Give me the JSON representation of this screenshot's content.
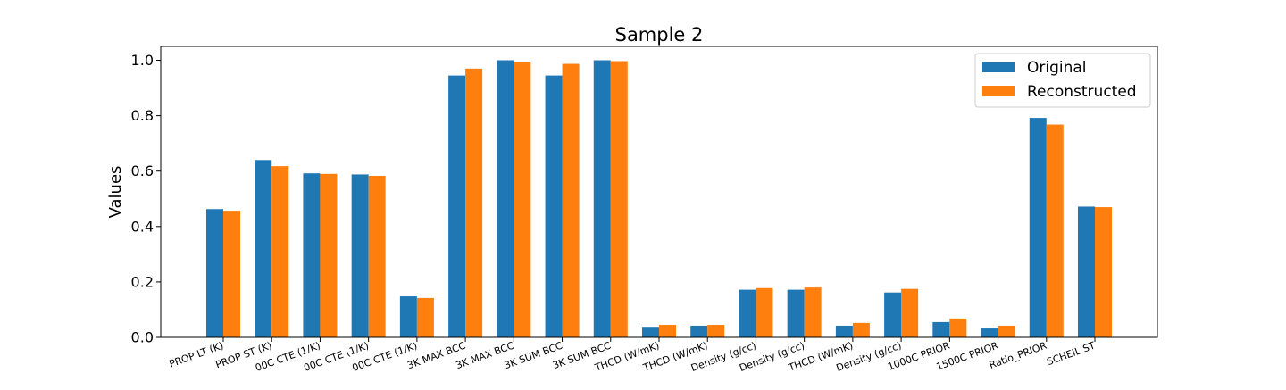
{
  "chart_data": {
    "type": "bar",
    "title": "Sample 2",
    "xlabel": "",
    "ylabel": "Values",
    "ylim": [
      0.0,
      1.05
    ],
    "yticks": [
      "0.0",
      "0.2",
      "0.4",
      "0.6",
      "0.8",
      "1.0"
    ],
    "grid": false,
    "legend_position": "top-right",
    "categories": [
      "PROP LT (K)",
      "PROP ST (K)",
      "00C CTE (1/K)",
      "00C CTE (1/K)",
      "00C CTE (1/K)",
      "3K MAX BCC",
      "3K MAX BCC",
      "3K SUM BCC",
      "3K SUM BCC",
      "THCD (W/mK)",
      "THCD (W/mK)",
      "Density (g/cc)",
      "Density (g/cc)",
      "THCD (W/mK)",
      "Density (g/cc)",
      "1000C PRIOR",
      "1500C PRIOR",
      "Ratio_PRIOR",
      "SCHEIL ST"
    ],
    "series": [
      {
        "name": "Original",
        "color": "#1f77b4",
        "values": [
          0.463,
          0.64,
          0.592,
          0.588,
          0.148,
          0.945,
          1.0,
          0.945,
          1.0,
          0.038,
          0.042,
          0.172,
          0.172,
          0.042,
          0.162,
          0.055,
          0.032,
          0.792,
          0.472
        ]
      },
      {
        "name": "Reconstructed",
        "color": "#ff7f0e",
        "values": [
          0.457,
          0.618,
          0.59,
          0.583,
          0.142,
          0.97,
          0.993,
          0.987,
          0.997,
          0.045,
          0.045,
          0.178,
          0.18,
          0.052,
          0.175,
          0.068,
          0.042,
          0.768,
          0.47
        ]
      }
    ]
  }
}
